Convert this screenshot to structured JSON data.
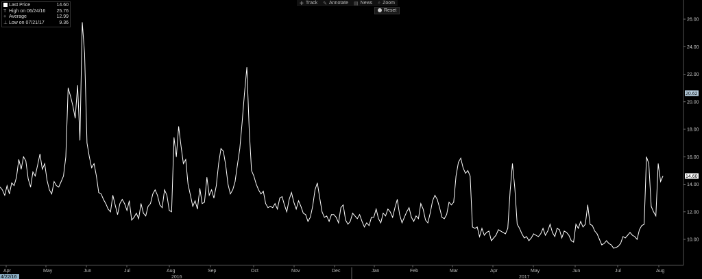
{
  "legend": {
    "last_price_label": "Last Price",
    "last_price_value": "14.60",
    "high_label": "High on 06/24/16",
    "high_value": "25.76",
    "average_label": "Average",
    "average_value": "12.99",
    "low_label": "Low on 07/21/17",
    "low_value": "9.36"
  },
  "toolbar": {
    "track_label": "Track",
    "annotate_label": "Annotate",
    "news_label": "News",
    "zoom_label": "Zoom",
    "reset_label": "Reset"
  },
  "date_tag": "4/22/16",
  "colors": {
    "line": "#ffffff",
    "background": "#000000",
    "last_tag": "#ffffff",
    "hi_tag": "#ffffff"
  },
  "chart_data": {
    "type": "line",
    "title": "",
    "xlabel": "",
    "ylabel": "",
    "ylim": [
      8.0,
      27.0
    ],
    "y_ticks": [
      "10.00",
      "12.00",
      "14.00",
      "16.00",
      "18.00",
      "20.00",
      "22.00",
      "24.00",
      "26.00"
    ],
    "y_tick_values": [
      10,
      12,
      14,
      16,
      18,
      20,
      22,
      24,
      26
    ],
    "x_ticks": [
      "Apr",
      "May",
      "Jun",
      "Jul",
      "Aug",
      "Sep",
      "Oct",
      "Nov",
      "Dec",
      "Jan",
      "Feb",
      "Mar",
      "Apr",
      "May",
      "Jun",
      "Jul",
      "Aug"
    ],
    "year_labels": [
      "2016",
      "2017"
    ],
    "last_value_tag": "14.60",
    "highlight_tag": "20.62",
    "grid": false,
    "series": [
      {
        "values": [
          13.8,
          13.6,
          13.2,
          13.9,
          13.3,
          14.1,
          13.9,
          14.5,
          15.8,
          15.1,
          16.0,
          15.7,
          14.4,
          13.8,
          14.9,
          14.6,
          15.4,
          16.2,
          15.1,
          15.5,
          14.3,
          13.6,
          13.3,
          14.2,
          13.9,
          13.8,
          14.2,
          14.6,
          16.0,
          21.0,
          20.4,
          19.7,
          18.8,
          21.2,
          17.2,
          25.76,
          23.5,
          17.0,
          16.0,
          15.2,
          15.5,
          14.6,
          13.4,
          13.3,
          12.9,
          12.6,
          12.2,
          12.0,
          13.2,
          12.5,
          11.8,
          12.6,
          12.9,
          12.6,
          12.1,
          12.8,
          11.4,
          11.6,
          11.9,
          11.5,
          12.6,
          11.9,
          11.7,
          12.4,
          12.6,
          13.3,
          13.6,
          13.2,
          12.5,
          12.3,
          13.6,
          13.2,
          12.1,
          12.0,
          17.4,
          16.0,
          18.2,
          16.8,
          15.5,
          15.8,
          14.0,
          13.2,
          12.4,
          12.8,
          12.2,
          13.7,
          12.6,
          12.7,
          14.5,
          13.2,
          13.6,
          13.0,
          13.9,
          15.5,
          16.6,
          16.4,
          15.4,
          14.0,
          13.3,
          13.6,
          14.2,
          15.4,
          16.6,
          18.5,
          20.6,
          22.5,
          18.0,
          15.0,
          14.6,
          14.0,
          13.6,
          13.3,
          13.5,
          12.6,
          12.3,
          12.4,
          12.3,
          12.6,
          12.2,
          13.0,
          13.1,
          12.5,
          12.0,
          12.9,
          13.4,
          12.7,
          12.2,
          12.8,
          12.4,
          11.9,
          11.8,
          11.3,
          11.6,
          12.4,
          13.6,
          14.1,
          13.0,
          12.0,
          11.6,
          11.7,
          11.3,
          11.8,
          11.8,
          11.6,
          11.2,
          12.3,
          12.5,
          11.4,
          11.1,
          11.3,
          11.9,
          11.7,
          11.5,
          11.8,
          11.3,
          10.9,
          11.2,
          11.0,
          11.6,
          11.6,
          12.2,
          11.5,
          11.2,
          11.9,
          11.7,
          12.2,
          12.0,
          11.6,
          12.3,
          12.9,
          11.8,
          11.2,
          11.6,
          12.0,
          12.3,
          11.6,
          11.3,
          11.7,
          11.5,
          12.6,
          12.2,
          11.4,
          11.2,
          11.9,
          12.8,
          13.2,
          12.9,
          12.3,
          11.6,
          11.5,
          11.8,
          12.7,
          12.5,
          12.7,
          14.6,
          15.6,
          15.9,
          15.2,
          14.8,
          15.0,
          14.6,
          10.9,
          10.8,
          10.9,
          10.2,
          10.8,
          10.3,
          10.5,
          10.6,
          9.9,
          10.1,
          10.3,
          10.7,
          10.6,
          10.5,
          10.4,
          10.8,
          13.5,
          15.5,
          13.7,
          11.1,
          10.8,
          10.4,
          10.1,
          10.2,
          9.9,
          10.1,
          10.4,
          10.3,
          10.2,
          10.4,
          10.8,
          10.3,
          10.6,
          11.1,
          10.5,
          10.2,
          10.8,
          10.7,
          10.1,
          10.6,
          10.5,
          10.3,
          9.9,
          9.8,
          11.1,
          10.8,
          11.3,
          10.9,
          11.1,
          12.5,
          11.1,
          11.0,
          10.6,
          10.4,
          10.0,
          9.6,
          9.7,
          9.9,
          9.7,
          9.6,
          9.36,
          9.4,
          9.5,
          9.7,
          10.2,
          10.1,
          10.3,
          10.5,
          10.3,
          10.2,
          10.0,
          10.7,
          11.0,
          11.1,
          16.0,
          15.5,
          12.4,
          12.0,
          11.7,
          15.5,
          14.2,
          14.6
        ]
      }
    ]
  }
}
